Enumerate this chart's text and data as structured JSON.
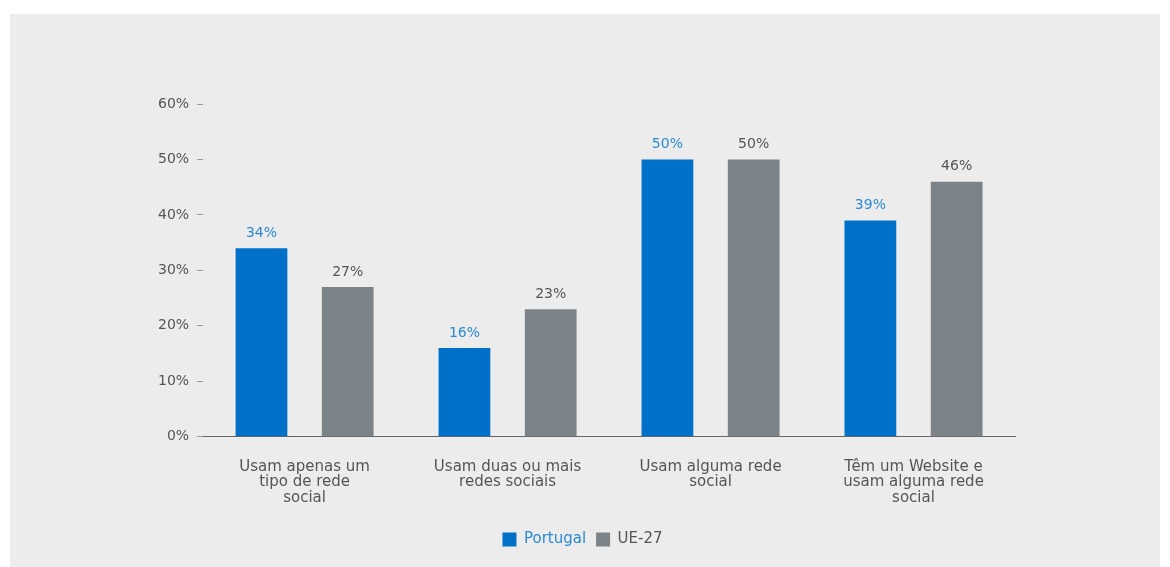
{
  "chart_data": {
    "type": "bar",
    "categories": [
      "Usam apenas um tipo de rede social",
      "Usam duas ou mais redes sociais",
      "Usam alguma rede social",
      "Têm um Website e usam alguma rede social"
    ],
    "series": [
      {
        "name": "Portugal",
        "color": "#0070c8",
        "values": [
          34,
          16,
          50,
          39
        ],
        "value_labels": [
          "34%",
          "16%",
          "50%",
          "39%"
        ]
      },
      {
        "name": "UE-27",
        "color": "#7b8389",
        "values": [
          27,
          23,
          50,
          46
        ],
        "value_labels": [
          "27%",
          "23%",
          "50%",
          "46%"
        ]
      }
    ],
    "ylim": [
      0,
      60
    ],
    "yticks": [
      {
        "value": 0,
        "label": "0%"
      },
      {
        "value": 10,
        "label": "10%"
      },
      {
        "value": 20,
        "label": "20%"
      },
      {
        "value": 30,
        "label": "30%"
      },
      {
        "value": 40,
        "label": "40%"
      },
      {
        "value": 50,
        "label": "50%"
      },
      {
        "value": 60,
        "label": "60%"
      }
    ],
    "grid": false,
    "legend": "bottom"
  }
}
